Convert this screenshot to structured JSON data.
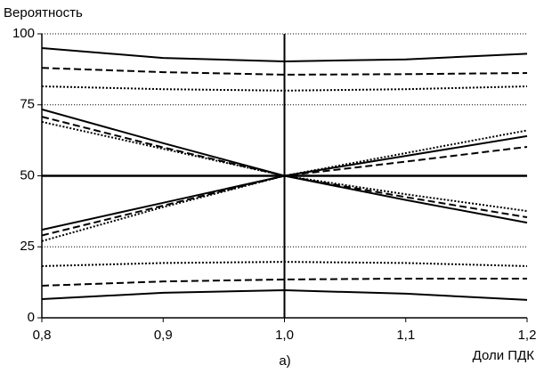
{
  "chart_data": {
    "type": "line",
    "y_label": "Вероятность",
    "x_label": "Доли ПДК",
    "caption": "а)",
    "x": [
      0.8,
      0.9,
      1.0,
      1.1,
      1.2
    ],
    "xlim": [
      0.8,
      1.2
    ],
    "xticks": [
      {
        "value": 0.8,
        "label": "0,8"
      },
      {
        "value": 0.9,
        "label": "0,9"
      },
      {
        "value": 1.0,
        "label": "1,0"
      },
      {
        "value": 1.1,
        "label": "1,1"
      },
      {
        "value": 1.2,
        "label": "1,2"
      }
    ],
    "ylim": [
      0,
      100
    ],
    "yticks": [
      0,
      25,
      50,
      75,
      100
    ],
    "grid": true,
    "hline": 50,
    "vline": 1.0,
    "series": [
      {
        "color": "#000000",
        "style": "solid",
        "values": [
          95,
          91.5,
          90.3,
          91,
          93
        ]
      },
      {
        "color": "#000000",
        "style": "dashed",
        "values": [
          88,
          86.5,
          85.6,
          85.8,
          86.2
        ]
      },
      {
        "color": "#000000",
        "style": "dotted",
        "values": [
          81.5,
          80.5,
          80,
          80.5,
          81.5
        ]
      },
      {
        "color": "#000000",
        "style": "solid",
        "values": [
          73.4,
          61.5,
          50,
          41.5,
          33.5
        ]
      },
      {
        "color": "#000000",
        "style": "dashed",
        "values": [
          70.8,
          60,
          50,
          42.5,
          35.4
        ]
      },
      {
        "color": "#000000",
        "style": "dotted",
        "values": [
          69,
          59.5,
          50,
          43.5,
          37.6
        ]
      },
      {
        "color": "#000000",
        "style": "solid",
        "values": [
          31,
          40.5,
          50,
          57,
          64
        ]
      },
      {
        "color": "#000000",
        "style": "dashed",
        "values": [
          29,
          39.5,
          50,
          55,
          60.2
        ]
      },
      {
        "color": "#000000",
        "style": "dotted",
        "values": [
          27,
          39,
          50,
          58,
          66
        ]
      },
      {
        "color": "#000000",
        "style": "dotted",
        "values": [
          18.2,
          19.3,
          19.7,
          19.3,
          18.2
        ]
      },
      {
        "color": "#000000",
        "style": "dashed",
        "values": [
          11.3,
          12.8,
          13.5,
          13.8,
          13.8
        ]
      },
      {
        "color": "#000000",
        "style": "solid",
        "values": [
          6.6,
          8.8,
          9.7,
          8.5,
          6.3
        ]
      }
    ]
  }
}
